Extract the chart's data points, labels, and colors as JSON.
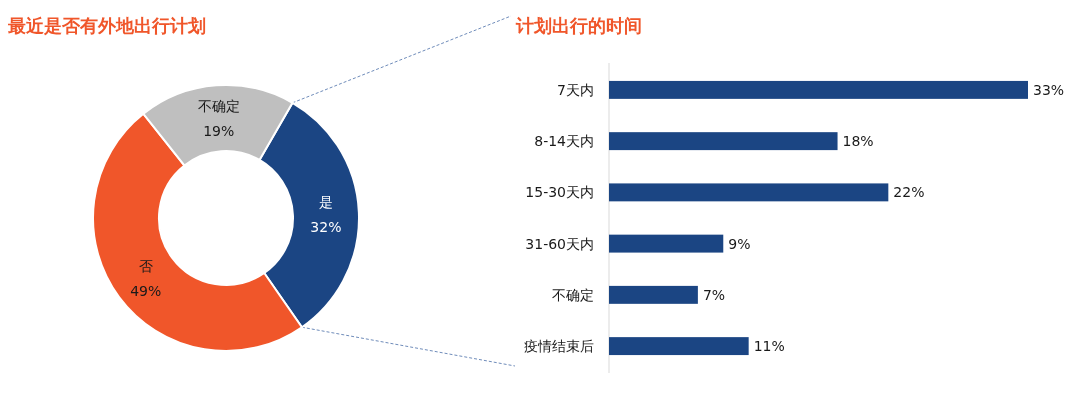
{
  "chart_data": [
    {
      "type": "donut",
      "title": "最近是否有外地出行计划",
      "categories": [
        "是",
        "否",
        "不确定"
      ],
      "values": [
        32,
        49,
        19
      ],
      "colors": [
        "#1b4583",
        "#f0562a",
        "#bfbfbf"
      ],
      "value_labels": [
        "32%",
        "49%",
        "19%"
      ]
    },
    {
      "type": "bar",
      "orientation": "horizontal",
      "title": "计划出行的时间",
      "categories": [
        "7天内",
        "8-14天内",
        "15-30天内",
        "31-60天内",
        "不确定",
        "疫情结束后"
      ],
      "values": [
        33,
        18,
        22,
        9,
        7,
        11
      ],
      "color": "#1b4583",
      "value_labels": [
        "33%",
        "18%",
        "22%",
        "9%",
        "7%",
        "11%"
      ],
      "tick_labels": "y"
    }
  ]
}
